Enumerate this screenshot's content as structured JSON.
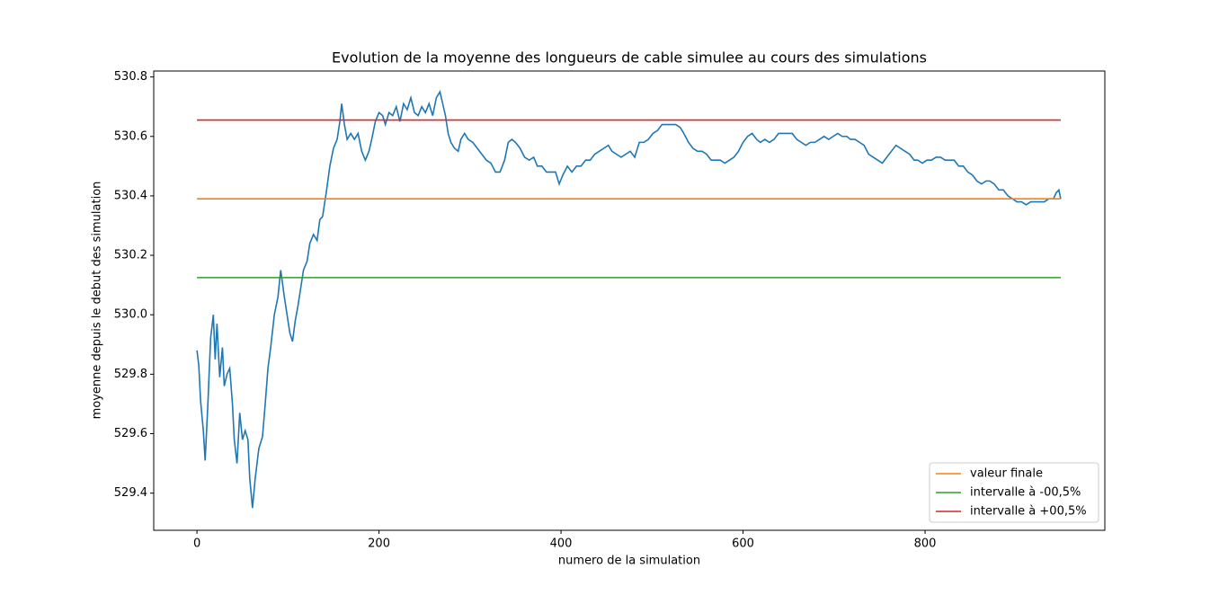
{
  "chart_data": {
    "type": "line",
    "title": "Evolution de la moyenne des longueurs de cable simulee au cours des simulations",
    "xlabel": "numero de la simulation",
    "ylabel": "moyenne depuis le debut des simulation",
    "xlim": [
      -47.5,
      997.5
    ],
    "ylim": [
      529.275,
      530.82
    ],
    "xticks": [
      0,
      200,
      400,
      600,
      800
    ],
    "yticks": [
      529.4,
      529.6,
      529.8,
      {
        "value": 530,
        "label": "530.0"
      },
      530.2,
      530.4,
      530.6,
      530.8
    ],
    "legend": "lower right",
    "series": [
      {
        "color": "#1f77b4",
        "x": [
          0,
          2,
          4,
          7,
          9,
          12,
          15,
          18,
          20,
          22,
          25,
          28,
          30,
          33,
          36,
          39,
          41,
          44,
          47,
          50,
          53,
          56,
          58,
          61,
          64,
          68,
          72,
          75,
          78,
          81,
          85,
          89,
          92,
          96,
          99,
          102,
          105,
          108,
          111,
          114,
          117,
          121,
          124,
          128,
          132,
          135,
          138,
          142,
          146,
          150,
          154,
          157,
          159,
          162,
          165,
          169,
          173,
          177,
          181,
          185,
          189,
          192,
          196,
          200,
          204,
          207,
          211,
          215,
          219,
          223,
          227,
          231,
          235,
          239,
          243,
          247,
          251,
          255,
          259,
          263,
          267,
          270,
          273,
          276,
          279,
          283,
          287,
          290,
          294,
          298,
          303,
          308,
          313,
          318,
          323,
          328,
          333,
          338,
          342,
          346,
          350,
          355,
          360,
          365,
          370,
          374,
          379,
          384,
          389,
          394,
          398,
          402,
          407,
          412,
          417,
          422,
          427,
          432,
          437,
          442,
          447,
          452,
          456,
          461,
          466,
          471,
          476,
          481,
          486,
          491,
          496,
          501,
          506,
          511,
          516,
          521,
          526,
          531,
          535,
          540,
          545,
          550,
          555,
          560,
          565,
          570,
          575,
          580,
          585,
          590,
          595,
          600,
          605,
          610,
          615,
          619,
          624,
          629,
          634,
          639,
          644,
          649,
          654,
          659,
          664,
          669,
          674,
          679,
          684,
          689,
          694,
          699,
          704,
          709,
          714,
          718,
          723,
          728,
          733,
          738,
          743,
          748,
          753,
          758,
          763,
          768,
          773,
          778,
          783,
          788,
          792,
          797,
          802,
          807,
          812,
          817,
          822,
          827,
          832,
          837,
          842,
          847,
          852,
          857,
          862,
          867,
          871,
          876,
          881,
          886,
          891,
          896,
          901,
          906,
          911,
          916,
          921,
          926,
          931,
          936,
          941,
          944,
          947,
          949
        ],
        "values": [
          529.88,
          529.83,
          529.71,
          529.61,
          529.51,
          529.7,
          529.92,
          530.0,
          529.85,
          529.97,
          529.79,
          529.89,
          529.76,
          529.8,
          529.82,
          529.7,
          529.58,
          529.5,
          529.67,
          529.58,
          529.61,
          529.58,
          529.45,
          529.35,
          529.45,
          529.55,
          529.59,
          529.7,
          529.82,
          529.89,
          530.0,
          530.06,
          530.15,
          530.06,
          530.0,
          529.94,
          529.91,
          529.98,
          530.03,
          530.09,
          530.15,
          530.18,
          530.24,
          530.27,
          530.25,
          530.32,
          530.33,
          530.41,
          530.5,
          530.56,
          530.59,
          530.65,
          530.71,
          530.64,
          530.59,
          530.61,
          530.59,
          530.61,
          530.55,
          530.52,
          530.55,
          530.59,
          530.65,
          530.68,
          530.67,
          530.64,
          530.68,
          530.67,
          530.7,
          530.65,
          530.71,
          530.69,
          530.73,
          530.68,
          530.67,
          530.7,
          530.68,
          530.71,
          530.67,
          530.73,
          530.75,
          530.71,
          530.67,
          530.61,
          530.58,
          530.56,
          530.55,
          530.59,
          530.61,
          530.59,
          530.58,
          530.56,
          530.54,
          530.52,
          530.51,
          530.48,
          530.48,
          530.52,
          530.58,
          530.59,
          530.58,
          530.56,
          530.53,
          530.52,
          530.53,
          530.5,
          530.5,
          530.48,
          530.48,
          530.48,
          530.44,
          530.47,
          530.5,
          530.48,
          530.5,
          530.5,
          530.52,
          530.52,
          530.54,
          530.55,
          530.56,
          530.57,
          530.55,
          530.54,
          530.53,
          530.54,
          530.55,
          530.53,
          530.58,
          530.58,
          530.59,
          530.61,
          530.62,
          530.64,
          530.64,
          530.64,
          530.64,
          530.63,
          530.61,
          530.58,
          530.56,
          530.55,
          530.55,
          530.54,
          530.52,
          530.52,
          530.52,
          530.51,
          530.52,
          530.53,
          530.55,
          530.58,
          530.6,
          530.61,
          530.59,
          530.58,
          530.59,
          530.58,
          530.59,
          530.61,
          530.61,
          530.61,
          530.61,
          530.59,
          530.58,
          530.57,
          530.58,
          530.58,
          530.59,
          530.6,
          530.59,
          530.6,
          530.61,
          530.6,
          530.6,
          530.59,
          530.59,
          530.58,
          530.57,
          530.54,
          530.53,
          530.52,
          530.51,
          530.53,
          530.55,
          530.57,
          530.56,
          530.55,
          530.54,
          530.52,
          530.52,
          530.51,
          530.52,
          530.52,
          530.53,
          530.53,
          530.52,
          530.52,
          530.52,
          530.5,
          530.5,
          530.48,
          530.47,
          530.45,
          530.44,
          530.45,
          530.45,
          530.44,
          530.42,
          530.42,
          530.4,
          530.39,
          530.38,
          530.38,
          530.37,
          530.38,
          530.38,
          530.38,
          530.38,
          530.39,
          530.39,
          530.41,
          530.42,
          530.39
        ]
      },
      {
        "name": "valeur finale",
        "color": "#ff7f0e",
        "x": [
          0,
          949
        ],
        "values": [
          530.39,
          530.39
        ]
      },
      {
        "name": "intervalle à -00,5%",
        "color": "#2ca02c",
        "x": [
          0,
          949
        ],
        "values": [
          530.125,
          530.125
        ]
      },
      {
        "name": "intervalle à +00,5%",
        "color": "#d62728",
        "x": [
          0,
          949
        ],
        "values": [
          530.655,
          530.655
        ]
      }
    ]
  }
}
